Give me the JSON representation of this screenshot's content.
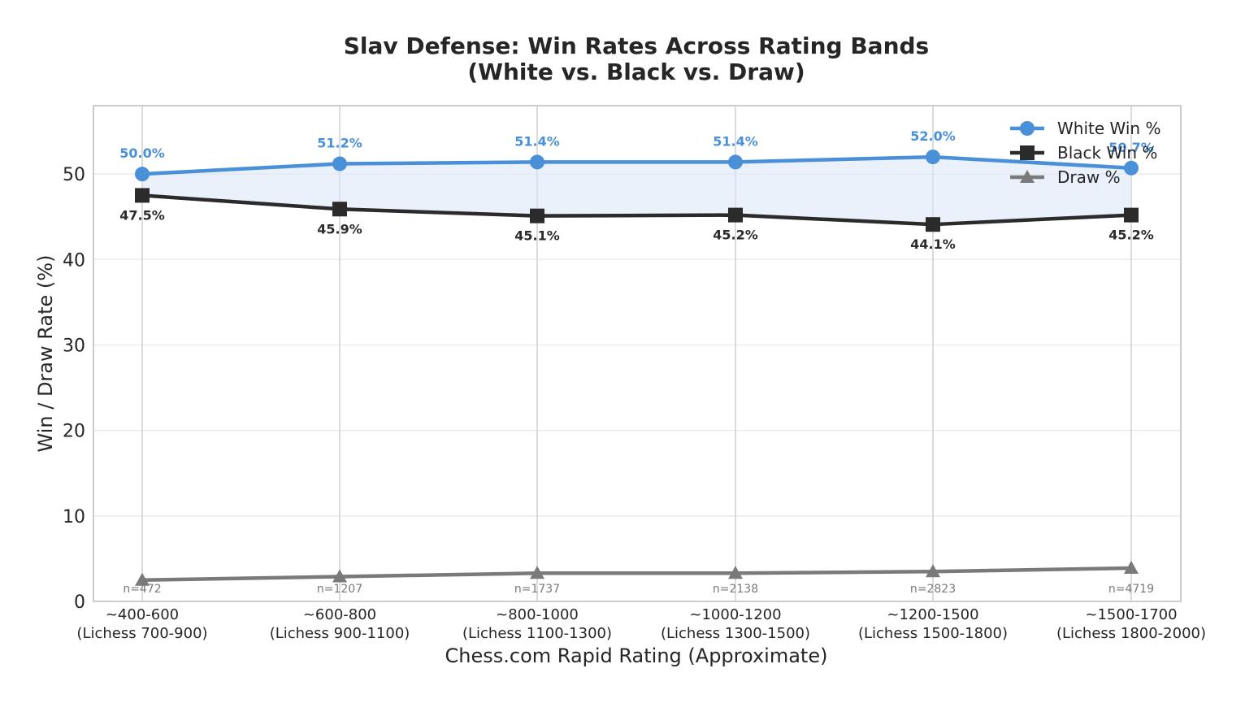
{
  "chart_data": {
    "type": "line",
    "title_lines": [
      "Slav Defense: Win Rates Across Rating Bands",
      "(White vs. Black vs. Draw)"
    ],
    "xlabel": "Chess.com Rapid Rating (Approximate)",
    "ylabel": "Win / Draw Rate (%)",
    "ylim": [
      0,
      58
    ],
    "yticks": [
      0,
      10,
      20,
      30,
      40,
      50
    ],
    "grid": true,
    "legend_position": "top-right",
    "categories": [
      [
        "~400-600",
        "(Lichess 700-900)"
      ],
      [
        "~600-800",
        "(Lichess 900-1100)"
      ],
      [
        "~800-1000",
        "(Lichess 1100-1300)"
      ],
      [
        "~1000-1200",
        "(Lichess 1300-1500)"
      ],
      [
        "~1200-1500",
        "(Lichess 1500-1800)"
      ],
      [
        "~1500-1700",
        "(Lichess 1800-2000)"
      ]
    ],
    "sample_sizes": [
      "n=472",
      "n=1207",
      "n=1737",
      "n=2138",
      "n=2823",
      "n=4719"
    ],
    "series": [
      {
        "name": "White Win %",
        "values": [
          50.0,
          51.2,
          51.4,
          51.4,
          52.0,
          50.7
        ],
        "labels": [
          "50.0%",
          "51.2%",
          "51.4%",
          "51.4%",
          "52.0%",
          "50.7%"
        ],
        "color": "#4a90d9",
        "marker": "circle"
      },
      {
        "name": "Black Win %",
        "values": [
          47.5,
          45.9,
          45.1,
          45.2,
          44.1,
          45.2
        ],
        "labels": [
          "47.5%",
          "45.9%",
          "45.1%",
          "45.2%",
          "44.1%",
          "45.2%"
        ],
        "color": "#2b2b2b",
        "marker": "square"
      },
      {
        "name": "Draw %",
        "values": [
          2.5,
          2.9,
          3.3,
          3.3,
          3.5,
          3.9
        ],
        "color": "#7a7a7a",
        "marker": "triangle"
      }
    ],
    "fill_between_color": "#dce8f7"
  }
}
